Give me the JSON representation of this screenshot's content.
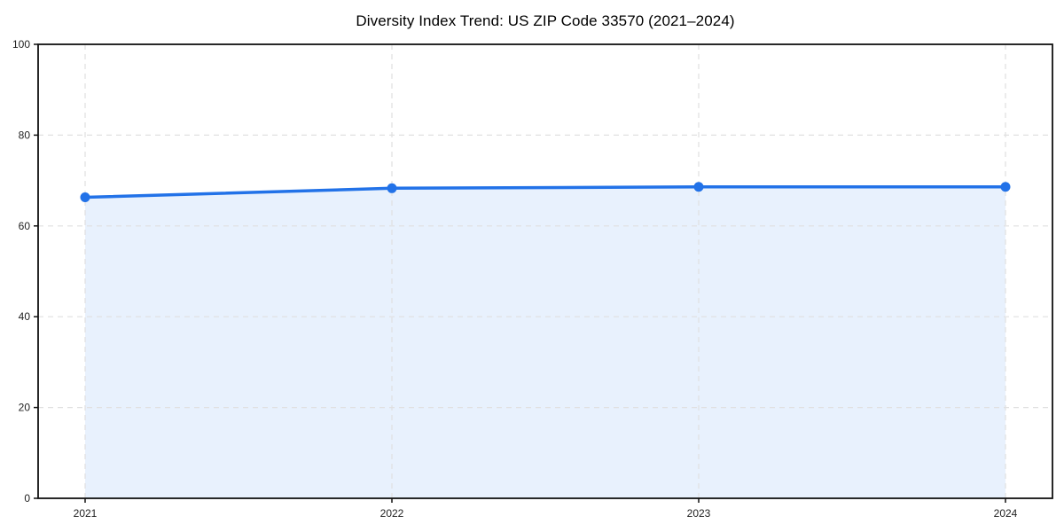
{
  "page": {
    "background": "#ffffff"
  },
  "chart_data": {
    "type": "area",
    "title": "Diversity Index Trend: US ZIP Code 33570 (2021–2024)",
    "series_name": "Diversity Index",
    "categories": [
      "2021",
      "2022",
      "2023",
      "2024"
    ],
    "values": [
      66.3,
      68.3,
      68.6,
      68.6
    ],
    "xlabel": "",
    "ylabel": "",
    "ylim": [
      0,
      100
    ],
    "yticks": [
      0,
      20,
      40,
      60,
      80,
      100
    ],
    "grid": true,
    "grid_style": "dashed",
    "legend_position": "none",
    "colors": {
      "line": "#2272e8",
      "marker": "#2272e8",
      "fill": "#e8f1fd",
      "grid": "#e0e0e0",
      "axis": "#111111",
      "tick_label": "#222222",
      "title": "#000000"
    }
  }
}
